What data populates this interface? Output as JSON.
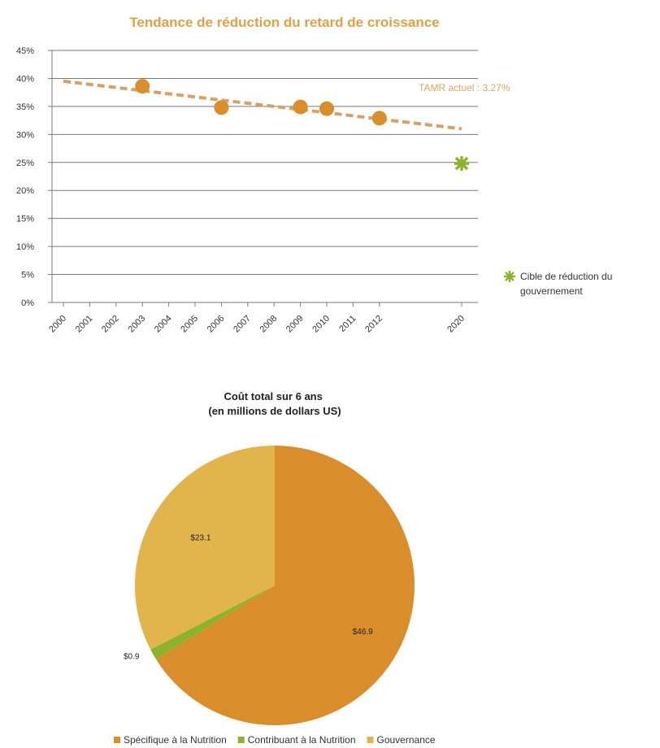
{
  "chart_data": [
    {
      "type": "scatter",
      "title": "Tendance de réduction du retard de croissance",
      "y_ticks": [
        "0%",
        "5%",
        "10%",
        "15%",
        "20%",
        "25%",
        "30%",
        "35%",
        "40%",
        "45%"
      ],
      "ylim": [
        0,
        45
      ],
      "x_ticks": [
        "2000",
        "2001",
        "2002",
        "2003",
        "2004",
        "2005",
        "2006",
        "2007",
        "2008",
        "2009",
        "2010",
        "2011",
        "2012",
        "2020"
      ],
      "series": [
        {
          "name": "",
          "color": "#D98E2B",
          "points": [
            {
              "x": "2003",
              "y": 38.6
            },
            {
              "x": "2006",
              "y": 34.8
            },
            {
              "x": "2009",
              "y": 34.9
            },
            {
              "x": "2010",
              "y": 34.6
            },
            {
              "x": "2012",
              "y": 32.9
            }
          ]
        },
        {
          "name": "Cible de réduction du gouvernement",
          "color": "#8DB32C",
          "marker": "star",
          "points": [
            {
              "x": "2020",
              "y": 24.8
            }
          ]
        }
      ],
      "trendline": {
        "start": {
          "x": "2000",
          "y": 39.5
        },
        "end": {
          "x": "2020",
          "y": 31.0
        },
        "color": "#D9A065"
      },
      "annotation": "TAMR actuel : 3.27%",
      "legend_placement": "right",
      "grid": true
    },
    {
      "type": "pie",
      "title": [
        "Coût total sur 6 ans",
        "(en millions de dollars US)"
      ],
      "slices": [
        {
          "label": "Spécifique à la Nutrition",
          "value": 46.9,
          "display": "$46.9",
          "color": "#D98E2B"
        },
        {
          "label": "Contribuant à la Nutrition",
          "value": 0.9,
          "display": "$0.9",
          "color": "#8DB32C"
        },
        {
          "label": "Gouvernance",
          "value": 23.1,
          "display": "$23.1",
          "color": "#E2B44C"
        }
      ],
      "legend_placement": "bottom"
    }
  ]
}
